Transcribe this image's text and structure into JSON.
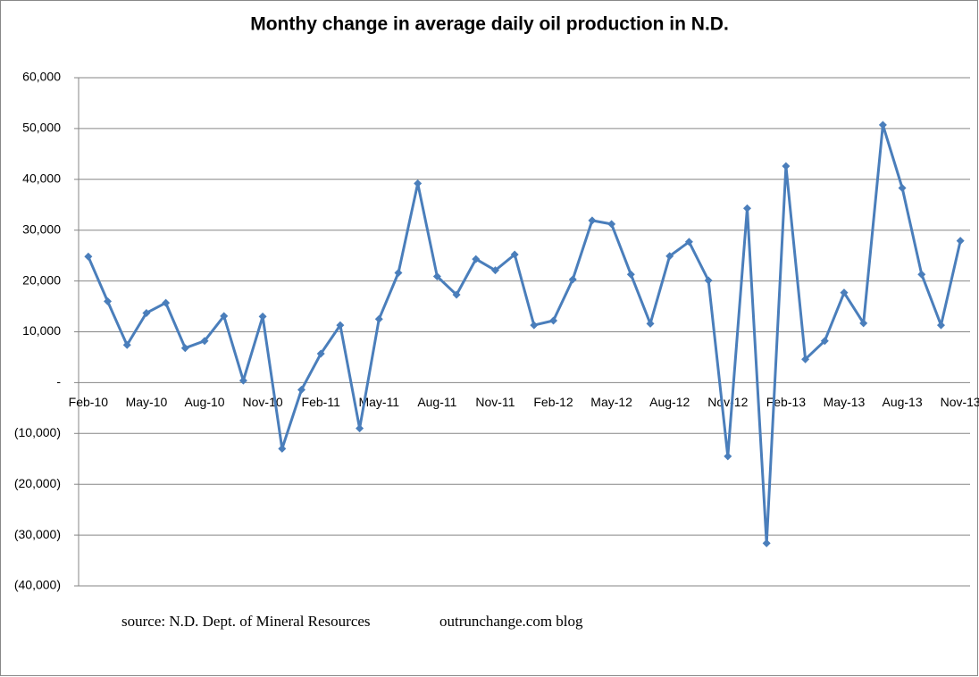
{
  "chart_data": {
    "type": "line",
    "title": "Monthy change in average daily oil production in N.D.",
    "categories": [
      "Feb-10",
      null,
      null,
      "May-10",
      null,
      null,
      "Aug-10",
      null,
      null,
      "Nov-10",
      null,
      null,
      "Feb-11",
      null,
      null,
      "May-11",
      null,
      null,
      "Aug-11",
      null,
      null,
      "Nov-11",
      null,
      null,
      "Feb-12",
      null,
      null,
      "May-12",
      null,
      null,
      "Aug-12",
      null,
      null,
      "Nov-12",
      null,
      null,
      "Feb-13",
      null,
      null,
      "May-13",
      null,
      null,
      "Aug-13",
      null,
      null,
      "Nov-13"
    ],
    "series": [
      {
        "color": "#4a7ebb",
        "values": [
          24800,
          16000,
          7400,
          13700,
          15700,
          6800,
          8200,
          13100,
          400,
          13000,
          -13000,
          -1400,
          5700,
          11300,
          -9000,
          12500,
          21600,
          39200,
          20900,
          17300,
          24300,
          22100,
          25200,
          11300,
          12200,
          20300,
          31900,
          31200,
          21300,
          11600,
          24900,
          27700,
          20100,
          -14500,
          34300,
          -31600,
          42600,
          4600,
          8200,
          17700,
          11700,
          50700,
          38300,
          21300,
          11300,
          27900
        ]
      }
    ],
    "ylim": [
      -40000,
      60000
    ],
    "yticks": [
      {
        "value": -40000,
        "label": "(40,000)"
      },
      {
        "value": -30000,
        "label": "(30,000)"
      },
      {
        "value": -20000,
        "label": "(20,000)"
      },
      {
        "value": -10000,
        "label": "(10,000)"
      },
      {
        "value": 0,
        "label": "-"
      },
      {
        "value": 10000,
        "label": "10,000"
      },
      {
        "value": 20000,
        "label": "20,000"
      },
      {
        "value": 30000,
        "label": "30,000"
      },
      {
        "value": 40000,
        "label": "40,000"
      },
      {
        "value": 50000,
        "label": "50,000"
      },
      {
        "value": 60000,
        "label": "60,000"
      }
    ],
    "grid": true,
    "source_note": "source: N.D. Dept. of Mineral Resources",
    "blog_note": "outrunchange.com blog"
  }
}
